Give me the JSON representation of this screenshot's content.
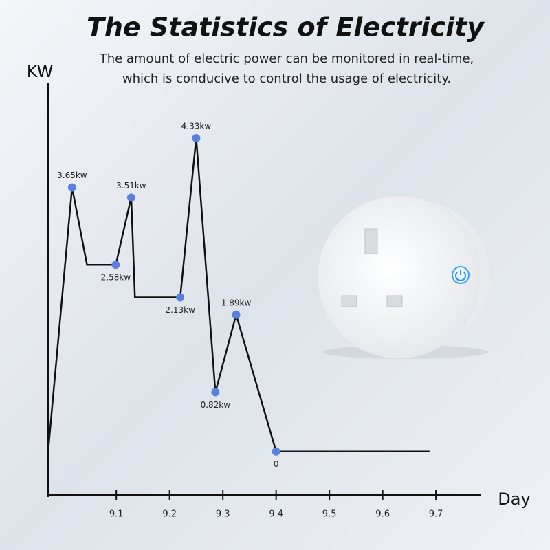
{
  "chart_data": {
    "type": "line",
    "title": "The Statistics of Electricity",
    "subtitle": [
      "The amount of electric power can be monitored in real-time,",
      "which is conducive to control the usage of electricity."
    ],
    "xlabel": "Day",
    "ylabel": "KW",
    "x": [
      8.972,
      9.017,
      9.045,
      9.099,
      9.128,
      9.135,
      9.22,
      9.25,
      9.286,
      9.325,
      9.4,
      9.688
    ],
    "values": [
      0,
      3.65,
      2.58,
      2.58,
      3.51,
      2.13,
      2.13,
      4.33,
      0.82,
      1.89,
      0,
      0
    ],
    "value_labels": [
      null,
      "3.65kw",
      null,
      "2.58kw",
      "3.51kw",
      null,
      "2.13kw",
      "4.33kw",
      "0.82kw",
      "1.89kw",
      "0",
      null
    ],
    "color": "#111111",
    "marker_color": "#5b7fe0",
    "xlim": [
      8.972,
      9.785
    ],
    "ylim": [
      -0.63,
      5.1
    ],
    "xticks": [
      9.1,
      9.2,
      9.3,
      9.4,
      9.5,
      9.6,
      9.7
    ]
  }
}
